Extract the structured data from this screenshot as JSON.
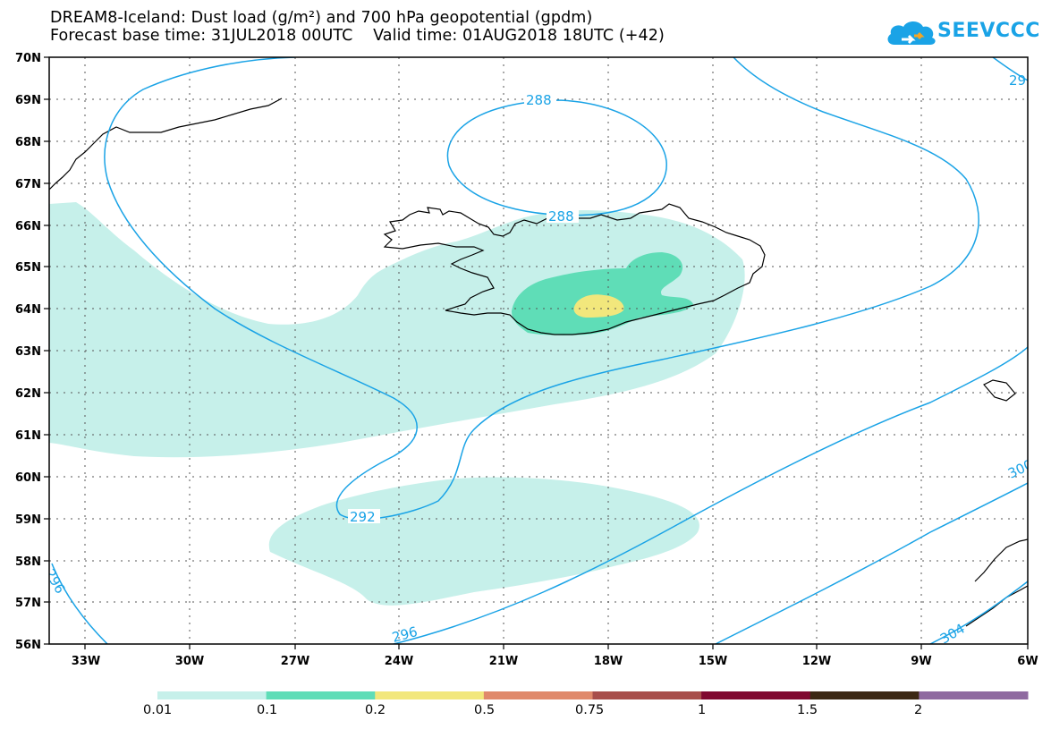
{
  "header": {
    "title_line1": "DREAM8-Iceland: Dust load (g/m²) and 700 hPa geopotential (gpdm)",
    "title_line2": "Forecast base time: 31JUL2018 00UTC    Valid time: 01AUG2018 18UTC (+42)",
    "logo_text": "SEEVCCC",
    "logo_icon": "cloud-icon",
    "logo_color": "#1aa3e6"
  },
  "map": {
    "lat_labels": [
      "70N",
      "69N",
      "68N",
      "67N",
      "66N",
      "65N",
      "64N",
      "63N",
      "62N",
      "61N",
      "60N",
      "59N",
      "58N",
      "57N",
      "56N"
    ],
    "lon_labels": [
      "33W",
      "30W",
      "27W",
      "24W",
      "21W",
      "18W",
      "15W",
      "12W",
      "9W",
      "6W"
    ],
    "contour_labels": [
      "288",
      "288",
      "292",
      "296",
      "296",
      "300",
      "304",
      "29"
    ],
    "contour_color": "#1aa3e6"
  },
  "legend": {
    "colors": [
      "#c6f0ea",
      "#5fddb7",
      "#f2e77c",
      "#e0896b",
      "#a84e4b",
      "#800830",
      "#3c2814",
      "#8f6aa0"
    ],
    "labels": [
      "0.01",
      "0.1",
      "0.2",
      "0.5",
      "0.75",
      "1",
      "1.5",
      "2"
    ]
  }
}
